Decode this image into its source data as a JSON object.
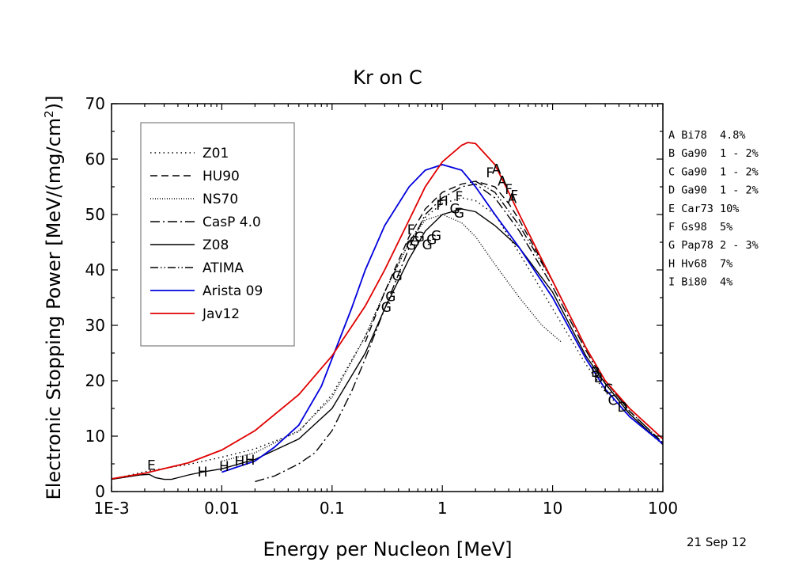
{
  "chart_data": {
    "type": "line",
    "title": "Kr on C",
    "xlabel": "Energy per Nucleon [MeV]",
    "ylabel_main": "Electronic Stopping Power [MeV/(mg/cm",
    "ylabel_sup": "2",
    "ylabel_end": ")]",
    "xscale": "log",
    "xlim": [
      0.001,
      100
    ],
    "ylim": [
      0,
      70
    ],
    "x_ticks": [
      {
        "value": 0.001,
        "label": "1E-3"
      },
      {
        "value": 0.01,
        "label": "0.01"
      },
      {
        "value": 0.1,
        "label": "0.1"
      },
      {
        "value": 1,
        "label": "1"
      },
      {
        "value": 10,
        "label": "10"
      },
      {
        "value": 100,
        "label": "100"
      }
    ],
    "y_ticks": [
      {
        "value": 0,
        "label": "0"
      },
      {
        "value": 10,
        "label": "10"
      },
      {
        "value": 20,
        "label": "20"
      },
      {
        "value": 30,
        "label": "30"
      },
      {
        "value": 40,
        "label": "40"
      },
      {
        "value": 50,
        "label": "50"
      },
      {
        "value": 60,
        "label": "60"
      },
      {
        "value": 70,
        "label": "70"
      }
    ],
    "grid": false,
    "legend_position": "top-left",
    "series": [
      {
        "name": "Z01",
        "color": "#000000",
        "dash": "1.5 4",
        "points": [
          [
            0.001,
            2.2
          ],
          [
            0.002,
            3.6
          ],
          [
            0.005,
            4.9
          ],
          [
            0.01,
            6.2
          ],
          [
            0.02,
            7.7
          ],
          [
            0.05,
            10.8
          ],
          [
            0.1,
            17.5
          ],
          [
            0.2,
            28
          ],
          [
            0.3,
            36
          ],
          [
            0.5,
            45
          ],
          [
            0.7,
            49.5
          ],
          [
            1,
            52
          ],
          [
            1.5,
            53
          ],
          [
            2,
            52.5
          ],
          [
            3,
            50
          ],
          [
            5,
            43
          ],
          [
            10,
            33
          ],
          [
            20,
            23
          ],
          [
            30,
            18
          ],
          [
            50,
            13.5
          ],
          [
            100,
            8.5
          ]
        ]
      },
      {
        "name": "HU90",
        "color": "#000000",
        "dash": "9 5",
        "points": [
          [
            0.2,
            27
          ],
          [
            0.3,
            36
          ],
          [
            0.5,
            46
          ],
          [
            0.7,
            51
          ],
          [
            1,
            54
          ],
          [
            1.5,
            55.5
          ],
          [
            2,
            56
          ],
          [
            3,
            55
          ],
          [
            4,
            52
          ],
          [
            5,
            49
          ],
          [
            10,
            38
          ],
          [
            20,
            26
          ],
          [
            30,
            20
          ],
          [
            50,
            14.5
          ],
          [
            100,
            8.8
          ]
        ]
      },
      {
        "name": "NS70",
        "color": "#000000",
        "dash": "1 2",
        "points": [
          [
            0.01,
            5.5
          ],
          [
            0.02,
            7
          ],
          [
            0.05,
            11
          ],
          [
            0.1,
            17
          ],
          [
            0.2,
            28
          ],
          [
            0.3,
            36
          ],
          [
            0.5,
            45
          ],
          [
            0.7,
            49
          ],
          [
            1,
            50
          ],
          [
            1.5,
            48.5
          ],
          [
            2,
            46
          ],
          [
            3,
            41
          ],
          [
            5,
            35
          ],
          [
            8,
            30
          ],
          [
            12,
            27
          ]
        ]
      },
      {
        "name": "CasP 4.0",
        "color": "#000000",
        "dash": "12 4 2 4",
        "points": [
          [
            0.02,
            1.8
          ],
          [
            0.03,
            2.8
          ],
          [
            0.05,
            5
          ],
          [
            0.07,
            7
          ],
          [
            0.1,
            11
          ],
          [
            0.15,
            18
          ],
          [
            0.2,
            24
          ],
          [
            0.3,
            33
          ],
          [
            0.5,
            44
          ],
          [
            0.7,
            50
          ],
          [
            1,
            53
          ],
          [
            1.5,
            55
          ],
          [
            2,
            55.5
          ],
          [
            3,
            53
          ],
          [
            5,
            47
          ],
          [
            10,
            37
          ],
          [
            20,
            25.5
          ],
          [
            30,
            19.5
          ],
          [
            50,
            14
          ],
          [
            100,
            8.6
          ]
        ]
      },
      {
        "name": "Z08",
        "color": "#000000",
        "dash": "",
        "points": [
          [
            0.001,
            2.2
          ],
          [
            0.0018,
            3
          ],
          [
            0.0022,
            3.1
          ],
          [
            0.0025,
            2.5
          ],
          [
            0.003,
            2.2
          ],
          [
            0.0035,
            2.2
          ],
          [
            0.004,
            2.5
          ],
          [
            0.005,
            3
          ],
          [
            0.007,
            3.6
          ],
          [
            0.01,
            4.1
          ],
          [
            0.02,
            5.8
          ],
          [
            0.05,
            9.5
          ],
          [
            0.1,
            15
          ],
          [
            0.2,
            25
          ],
          [
            0.3,
            33
          ],
          [
            0.5,
            42
          ],
          [
            0.7,
            47
          ],
          [
            1,
            50
          ],
          [
            1.5,
            51
          ],
          [
            2,
            50.5
          ],
          [
            3,
            48
          ],
          [
            5,
            44
          ],
          [
            10,
            36
          ],
          [
            20,
            24.5
          ],
          [
            30,
            19.5
          ],
          [
            50,
            14
          ],
          [
            100,
            8.5
          ]
        ]
      },
      {
        "name": "ATIMA",
        "color": "#000000",
        "dash": "10 3 1.5 3 1.5 3",
        "points": [
          [
            2,
            56
          ],
          [
            3,
            54
          ],
          [
            5,
            48
          ],
          [
            10,
            38
          ],
          [
            20,
            26
          ],
          [
            30,
            20
          ],
          [
            50,
            14.5
          ],
          [
            100,
            8.8
          ]
        ]
      },
      {
        "name": "Arista 09",
        "color": "#0000dd",
        "dash": "",
        "points": [
          [
            0.01,
            3.5
          ],
          [
            0.02,
            5.5
          ],
          [
            0.03,
            8
          ],
          [
            0.05,
            12
          ],
          [
            0.08,
            19
          ],
          [
            0.1,
            24
          ],
          [
            0.15,
            33
          ],
          [
            0.2,
            40
          ],
          [
            0.3,
            48
          ],
          [
            0.5,
            55
          ],
          [
            0.7,
            58
          ],
          [
            1,
            59
          ],
          [
            1.5,
            58
          ],
          [
            2,
            55
          ],
          [
            3,
            50
          ],
          [
            5,
            44
          ],
          [
            10,
            35
          ],
          [
            20,
            24
          ],
          [
            30,
            18.5
          ],
          [
            50,
            13.5
          ],
          [
            100,
            8.6
          ]
        ]
      },
      {
        "name": "Jav12",
        "color": "#e00000",
        "dash": "",
        "points": [
          [
            0.001,
            2.3
          ],
          [
            0.002,
            3.3
          ],
          [
            0.005,
            5.2
          ],
          [
            0.01,
            7.5
          ],
          [
            0.02,
            11
          ],
          [
            0.05,
            17.5
          ],
          [
            0.1,
            24.5
          ],
          [
            0.2,
            33.5
          ],
          [
            0.3,
            40
          ],
          [
            0.5,
            49
          ],
          [
            0.7,
            55
          ],
          [
            1,
            59.5
          ],
          [
            1.5,
            62.5
          ],
          [
            1.7,
            63
          ],
          [
            2,
            62.8
          ],
          [
            3,
            59
          ],
          [
            4,
            54
          ],
          [
            5,
            50
          ],
          [
            10,
            38
          ],
          [
            20,
            26
          ],
          [
            30,
            20
          ],
          [
            50,
            15
          ],
          [
            100,
            9.5
          ]
        ]
      }
    ],
    "markers": [
      {
        "label": "E",
        "x": 0.0023,
        "y": 4.8
      },
      {
        "label": "H",
        "x": 0.0067,
        "y": 3.6
      },
      {
        "label": "H",
        "x": 0.0105,
        "y": 4.6
      },
      {
        "label": "H",
        "x": 0.0145,
        "y": 5.5
      },
      {
        "label": "H",
        "x": 0.018,
        "y": 5.7
      },
      {
        "label": "G",
        "x": 0.31,
        "y": 33.3
      },
      {
        "label": "G",
        "x": 0.34,
        "y": 35.2
      },
      {
        "label": "G",
        "x": 0.39,
        "y": 38.9
      },
      {
        "label": "G",
        "x": 0.52,
        "y": 44.5
      },
      {
        "label": "G",
        "x": 0.56,
        "y": 45.2
      },
      {
        "label": "G",
        "x": 0.62,
        "y": 46
      },
      {
        "label": "G",
        "x": 0.73,
        "y": 44.6
      },
      {
        "label": "G",
        "x": 0.8,
        "y": 45.5
      },
      {
        "label": "G",
        "x": 0.88,
        "y": 46.2
      },
      {
        "label": "G",
        "x": 1.3,
        "y": 51.1
      },
      {
        "label": "G",
        "x": 1.42,
        "y": 50.3
      },
      {
        "label": "F",
        "x": 0.52,
        "y": 47.3
      },
      {
        "label": "F",
        "x": 0.95,
        "y": 51.7
      },
      {
        "label": "H",
        "x": 1.02,
        "y": 52.5
      },
      {
        "label": "F",
        "x": 1.42,
        "y": 53.3
      },
      {
        "label": "F",
        "x": 2.7,
        "y": 57.6
      },
      {
        "label": "A",
        "x": 3.1,
        "y": 58.2
      },
      {
        "label": "A",
        "x": 3.5,
        "y": 56.1
      },
      {
        "label": "F",
        "x": 4,
        "y": 54.6
      },
      {
        "label": "A",
        "x": 4.3,
        "y": 52.9
      },
      {
        "label": "F",
        "x": 4.5,
        "y": 53.5
      },
      {
        "label": "B",
        "x": 24.5,
        "y": 21.6
      },
      {
        "label": "B",
        "x": 26,
        "y": 20.6
      },
      {
        "label": "C",
        "x": 32,
        "y": 18.6
      },
      {
        "label": "C",
        "x": 35,
        "y": 16.5
      },
      {
        "label": "D",
        "x": 43,
        "y": 15.3
      }
    ],
    "references": [
      "A Bi78  4.8%",
      "B Ga90  1 - 2%",
      "C Ga90  1 - 2%",
      "D Ga90  1 - 2%",
      "E Car73 10%",
      "F Gs98  5%",
      "G Pap78 2 - 3%",
      "H Hv68  7%",
      "I Bi80  4%"
    ],
    "date": "21 Sep 12"
  }
}
